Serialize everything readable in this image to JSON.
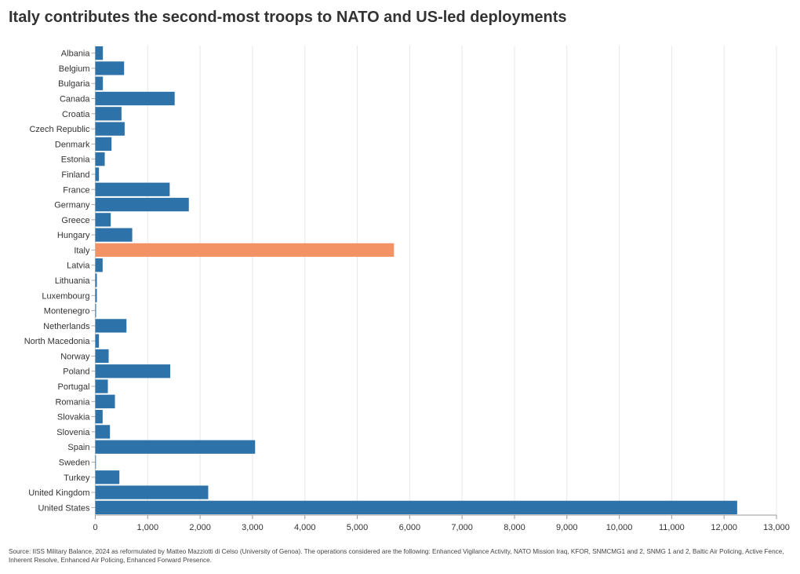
{
  "chart_data": {
    "type": "bar",
    "orientation": "horizontal",
    "title": "Italy contributes the second-most troops to NATO and US-led deployments",
    "categories": [
      "Albania",
      "Belgium",
      "Bulgaria",
      "Canada",
      "Croatia",
      "Czech Republic",
      "Denmark",
      "Estonia",
      "Finland",
      "France",
      "Germany",
      "Greece",
      "Hungary",
      "Italy",
      "Latvia",
      "Lithuania",
      "Luxembourg",
      "Montenegro",
      "Netherlands",
      "North Macedonia",
      "Norway",
      "Poland",
      "Portugal",
      "Romania",
      "Slovakia",
      "Slovenia",
      "Spain",
      "Sweden",
      "Turkey",
      "United Kingdom",
      "United States"
    ],
    "values": [
      145,
      550,
      145,
      1515,
      500,
      560,
      310,
      180,
      70,
      1420,
      1785,
      295,
      705,
      5700,
      140,
      30,
      30,
      15,
      595,
      70,
      255,
      1430,
      240,
      375,
      140,
      280,
      3050,
      10,
      460,
      2155,
      12250
    ],
    "highlight": "Italy",
    "colors": {
      "default": "#2e72aa",
      "highlight": "#f39264",
      "grid": "#e8e8e8"
    },
    "xlim": [
      0,
      13000
    ],
    "xticks": [
      "0",
      "1,000",
      "2,000",
      "3,000",
      "4,000",
      "5,000",
      "6,000",
      "7,000",
      "8,000",
      "9,000",
      "10,000",
      "11,000",
      "12,000",
      "13,000"
    ],
    "xlabel": "",
    "ylabel": "",
    "grid": "vertical"
  },
  "source": "Source: IISS Military Balance, 2024 as reformulated by Matteo Mazziotti di Celso (University of Genoa). The operations considered are the following: Enhanced Vigilance Activity, NATO Mission Iraq, KFOR, SNMCMG1 and 2, SNMG 1 and 2, Baltic Air Policing, Active Fence, Inherent Resolve, Enhanced Air Policing, Enhanced Forward Presence."
}
